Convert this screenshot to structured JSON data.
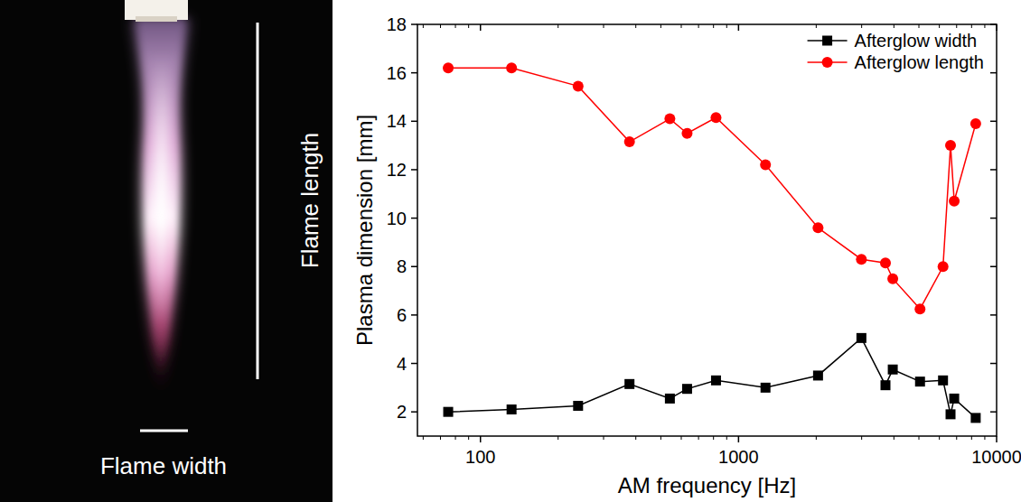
{
  "chart_data": {
    "type": "line",
    "x_label": "AM frequency [Hz]",
    "y_label": "Plasma dimension [mm]",
    "annotations": [
      "Flame length",
      "Flame width"
    ],
    "x": [
      75,
      132,
      239,
      378,
      542,
      632,
      818,
      1272,
      2033,
      2993,
      3710,
      3960,
      5050,
      6200,
      6630,
      6850,
      8300
    ],
    "series": [
      {
        "name": "Afterglow width",
        "color": "#000000",
        "marker": "square",
        "line_style": "solid",
        "values": [
          2.0,
          2.1,
          2.25,
          3.15,
          2.55,
          2.95,
          3.3,
          3.0,
          3.5,
          5.05,
          3.1,
          3.75,
          3.25,
          3.3,
          1.9,
          2.55,
          1.75
        ]
      },
      {
        "name": "Afterglow length",
        "color": "#ff0000",
        "marker": "circle",
        "line_style": "solid",
        "values": [
          16.2,
          16.2,
          15.45,
          13.15,
          14.1,
          13.5,
          14.15,
          12.2,
          9.6,
          8.3,
          8.15,
          7.5,
          6.25,
          8.0,
          13.0,
          10.7,
          13.9
        ]
      }
    ],
    "log": "x",
    "xlim": [
      57,
      10000
    ],
    "xticks": [
      100,
      1000,
      10000
    ],
    "ylim": [
      1,
      18
    ],
    "yticks": [
      2,
      4,
      6,
      8,
      10,
      12,
      14,
      16,
      18
    ],
    "grid": false,
    "legend": "upper right"
  }
}
